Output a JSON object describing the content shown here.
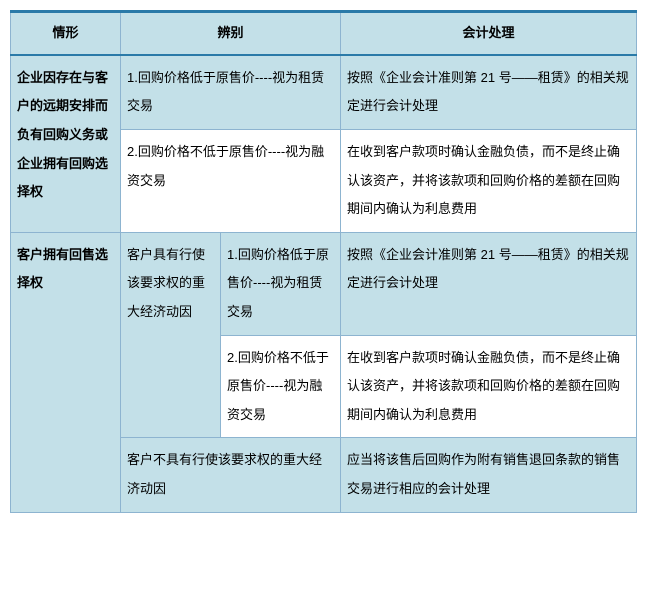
{
  "header": {
    "situation": "情形",
    "identification": "辨别",
    "accounting": "会计处理"
  },
  "row1": {
    "situation": "企业因存在与客户的远期安排而负有回购义务或企业拥有回购选择权",
    "ident1": "1.回购价格低于原售价----视为租赁交易",
    "acct1": "按照《企业会计准则第 21 号——租赁》的相关规定进行会计处理",
    "ident2": "2.回购价格不低于原售价----视为融资交易",
    "acct2": "在收到客户款项时确认金融负债，而不是终止确认该资产，并将该款项和回购价格的差额在回购期间内确认为利息费用"
  },
  "row2": {
    "situation": "客户拥有回售选择权",
    "sub1": "客户具有行使该要求权的重大经济动因",
    "ident1": "1.回购价格低于原售价----视为租赁交易",
    "acct1": "按照《企业会计准则第 21 号——租赁》的相关规定进行会计处理",
    "ident2": "2.回购价格不低于原售价----视为融资交易",
    "acct2": "在收到客户款项时确认金融负债，而不是终止确认该资产，并将该款项和回购价格的差额在回购期间内确认为利息费用",
    "sub2": "客户不具有行使该要求权的重大经济动因",
    "acct3": "应当将该售后回购作为附有销售退回条款的销售交易进行相应的会计处理"
  },
  "colors": {
    "shade": "#c3e0e8",
    "border": "#8db4d0",
    "header_top": "#2a7aa8",
    "header_bottom": "#2a7aa8"
  }
}
